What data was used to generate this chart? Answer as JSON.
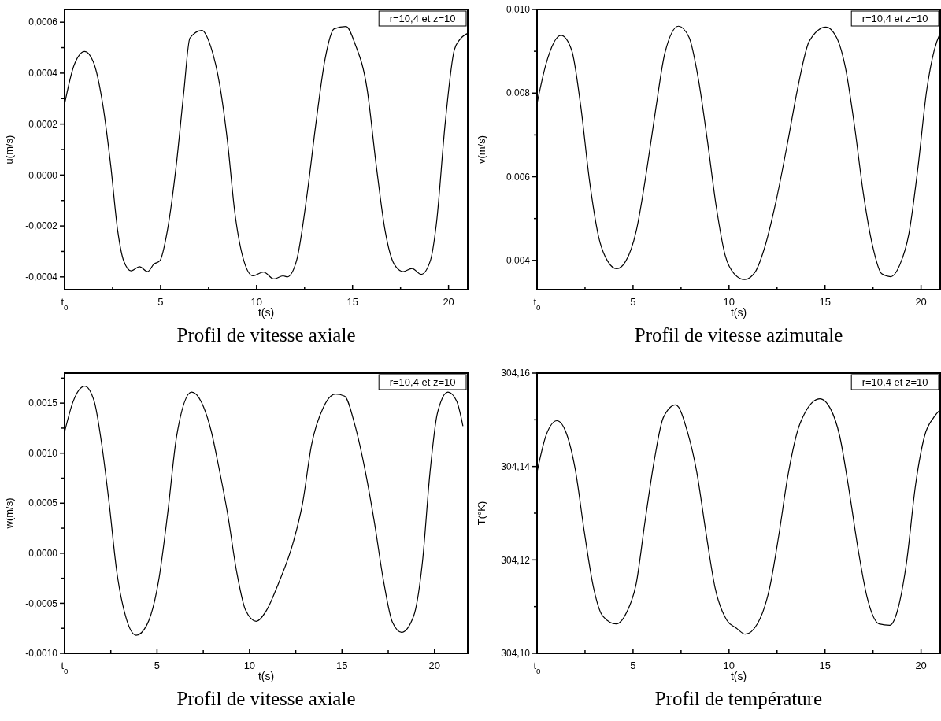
{
  "chart_data": [
    {
      "type": "line",
      "title": "Profil de vitesse axiale",
      "xlabel": "t(s)",
      "ylabel": "u(m/s)",
      "annotations": [
        "r=10,4 et z=10"
      ],
      "xlim": [
        0,
        21
      ],
      "xticks": [
        {
          "value": 0,
          "label": "t$_{0}$"
        },
        {
          "value": 2.5,
          "label": null
        },
        5,
        {
          "value": 7.5,
          "label": null
        },
        10,
        {
          "value": 12.5,
          "label": null
        },
        15,
        {
          "value": 17.5,
          "label": null
        },
        20
      ],
      "ylim": [
        -0.00045,
        0.00065
      ],
      "yticks": [
        {
          "value": -0.0004,
          "label": "-0,0004"
        },
        {
          "value": -0.0003,
          "label": null
        },
        {
          "value": -0.0002,
          "label": "-0,0002"
        },
        {
          "value": -0.0001,
          "label": null
        },
        {
          "value": 0,
          "label": "0,0000"
        },
        {
          "value": 0.0001,
          "label": null
        },
        {
          "value": 0.0002,
          "label": "0,0002"
        },
        {
          "value": 0.0003,
          "label": null
        },
        {
          "value": 0.0004,
          "label": "0,0004"
        },
        {
          "value": 0.0005,
          "label": null
        },
        {
          "value": 0.0006,
          "label": "0,0006"
        }
      ],
      "series": [
        {
          "color": "#000000",
          "x": [
            0,
            0.5,
            1.05,
            1.5,
            2.0,
            2.4,
            2.77,
            3.08,
            3.47,
            3.9,
            4.33,
            4.65,
            4.96,
            5.35,
            5.82,
            6.21,
            6.53,
            7.15,
            7.62,
            8.09,
            8.48,
            8.87,
            9.34,
            9.81,
            10.36,
            10.9,
            11.38,
            11.6,
            12.08,
            12.63,
            13.1,
            13.57,
            14.04,
            14.66,
            15.13,
            15.76,
            16.23,
            16.7,
            17.17,
            17.64,
            18.1,
            18.58,
            19.05,
            19.36,
            19.83,
            20.3,
            20.6,
            21
          ],
          "values": [
            0.000278,
            0.000432,
            0.000485,
            0.000444,
            0.000272,
            4e-05,
            -0.00022,
            -0.000337,
            -0.000376,
            -0.00036,
            -0.000379,
            -0.00035,
            -0.000337,
            -0.00022,
            4e-05,
            0.000325,
            0.000538,
            0.000568,
            0.000503,
            0.00035,
            0.000136,
            -0.000148,
            -0.000337,
            -0.000396,
            -0.000381,
            -0.000408,
            -0.000396,
            -0.0004,
            -0.000337,
            -7.7e-05,
            0.000207,
            0.000456,
            0.000574,
            0.000583,
            0.000515,
            0.000337,
            4e-05,
            -0.00022,
            -0.00035,
            -0.000379,
            -0.000367,
            -0.00039,
            -0.000337,
            -0.000196,
            0.000207,
            0.000491,
            0.000533,
            0.000556
          ]
        }
      ]
    },
    {
      "type": "line",
      "title": "Profil de vitesse azimutale",
      "xlabel": "t(s)",
      "ylabel": "v(m/s)",
      "annotations": [
        "r=10,4 et z=10"
      ],
      "xlim": [
        0,
        21
      ],
      "xticks": [
        {
          "value": 0,
          "label": "t$_{0}$"
        },
        {
          "value": 2.5,
          "label": null
        },
        5,
        {
          "value": 7.5,
          "label": null
        },
        10,
        {
          "value": 12.5,
          "label": null
        },
        15,
        {
          "value": 17.5,
          "label": null
        },
        20
      ],
      "ylim": [
        0.0033,
        0.01
      ],
      "yticks": [
        {
          "value": 0.004,
          "label": "0,004"
        },
        {
          "value": 0.005,
          "label": null
        },
        {
          "value": 0.006,
          "label": "0,006"
        },
        {
          "value": 0.007,
          "label": null
        },
        {
          "value": 0.008,
          "label": "0,008"
        },
        {
          "value": 0.009,
          "label": null
        },
        {
          "value": 0.01,
          "label": "0,010"
        }
      ],
      "series": [
        {
          "color": "#000000",
          "x": [
            0,
            0.47,
            1.25,
            1.8,
            2.27,
            2.74,
            3.21,
            3.68,
            4.15,
            4.62,
            5.17,
            5.72,
            6.19,
            6.66,
            7.37,
            7.92,
            8.39,
            8.86,
            9.33,
            9.8,
            10.27,
            10.82,
            11.36,
            11.83,
            12.46,
            13.09,
            13.56,
            14.19,
            15.05,
            15.6,
            16.07,
            16.54,
            17.0,
            17.48,
            17.95,
            18.42,
            18.9,
            19.37,
            19.83,
            20.3,
            20.69,
            21
          ],
          "values": [
            0.00775,
            0.0087,
            0.00938,
            0.00903,
            0.00771,
            0.00588,
            0.00456,
            0.00398,
            0.0038,
            0.00398,
            0.00471,
            0.00618,
            0.00764,
            0.00896,
            0.0096,
            0.00933,
            0.00837,
            0.00691,
            0.0053,
            0.00412,
            0.00368,
            0.00354,
            0.00372,
            0.00427,
            0.00544,
            0.00691,
            0.00808,
            0.00925,
            0.00958,
            0.00933,
            0.00859,
            0.0072,
            0.00559,
            0.00434,
            0.00368,
            0.00361,
            0.0039,
            0.00464,
            0.00618,
            0.00808,
            0.00903,
            0.00944
          ]
        }
      ]
    },
    {
      "type": "line",
      "title": "Profil de vitesse axiale",
      "xlabel": "t(s)",
      "ylabel": "w(m/s)",
      "annotations": [
        "r=10,4 et z=10"
      ],
      "xlim": [
        0,
        21.8
      ],
      "xticks": [
        {
          "value": 0,
          "label": "t$_{0}$"
        },
        {
          "value": 2.5,
          "label": null
        },
        5,
        {
          "value": 7.5,
          "label": null
        },
        10,
        {
          "value": 12.5,
          "label": null
        },
        15,
        {
          "value": 17.5,
          "label": null
        },
        20
      ],
      "ylim": [
        -0.001,
        0.0018
      ],
      "yticks": [
        {
          "value": -0.001,
          "label": "-0,0010"
        },
        {
          "value": -0.00075,
          "label": null
        },
        {
          "value": -0.0005,
          "label": "-0,0005"
        },
        {
          "value": -0.00025,
          "label": null
        },
        {
          "value": 0,
          "label": "0,0000"
        },
        {
          "value": 0.00025,
          "label": null
        },
        {
          "value": 0.0005,
          "label": "0,0005"
        },
        {
          "value": 0.00075,
          "label": null
        },
        {
          "value": 0.001,
          "label": "0,0010"
        },
        {
          "value": 0.00125,
          "label": null
        },
        {
          "value": 0.0015,
          "label": "0,0015"
        },
        {
          "value": 0.00175,
          "label": null
        }
      ],
      "series": [
        {
          "color": "#000000",
          "x": [
            0,
            0.47,
            1.09,
            1.6,
            2.0,
            2.41,
            2.82,
            3.3,
            3.87,
            4.44,
            5.09,
            5.57,
            6.06,
            6.87,
            7.52,
            7.93,
            8.33,
            8.82,
            9.3,
            9.79,
            10.36,
            10.92,
            11.57,
            12.38,
            12.87,
            13.35,
            14.0,
            14.65,
            15.14,
            15.7,
            16.27,
            16.76,
            17.24,
            17.73,
            18.22,
            18.87,
            19.35,
            19.76,
            20.16,
            20.73,
            21.2,
            21.54
          ],
          "values": [
            0.00121,
            0.00152,
            0.00167,
            0.00152,
            0.0011,
            0.0005,
            -0.00018,
            -0.00063,
            -0.00082,
            -0.00072,
            -0.00027,
            0.00039,
            0.00117,
            0.00161,
            0.00146,
            0.00122,
            0.00087,
            0.00039,
            -0.00018,
            -0.00057,
            -0.00068,
            -0.00057,
            -0.0003,
            0.00012,
            0.0005,
            0.00108,
            0.00146,
            0.00159,
            0.00157,
            0.00128,
            0.00081,
            0.0003,
            -0.00027,
            -0.00069,
            -0.00079,
            -0.00063,
            -9e-05,
            0.00081,
            0.0014,
            0.00161,
            0.00152,
            0.00127
          ]
        }
      ]
    },
    {
      "type": "line",
      "title": "Profil de température",
      "xlabel": "t(s)",
      "ylabel": "T(°K)",
      "annotations": [
        "r=10,4 et z=10"
      ],
      "xlim": [
        0,
        21
      ],
      "xticks": [
        {
          "value": 0,
          "label": "t$_{0}$"
        },
        {
          "value": 2.5,
          "label": null
        },
        5,
        {
          "value": 7.5,
          "label": null
        },
        10,
        {
          "value": 12.5,
          "label": null
        },
        15,
        {
          "value": 17.5,
          "label": null
        },
        20
      ],
      "ylim": [
        304.1,
        304.16
      ],
      "yticks": [
        {
          "value": 304.1,
          "label": "304,10"
        },
        {
          "value": 304.11,
          "label": null
        },
        {
          "value": 304.12,
          "label": "304,12"
        },
        {
          "value": 304.13,
          "label": null
        },
        {
          "value": 304.14,
          "label": "304,14"
        },
        {
          "value": 304.15,
          "label": null
        },
        {
          "value": 304.16,
          "label": "304,16"
        }
      ],
      "series": [
        {
          "color": "#000000",
          "x": [
            0,
            0.49,
            1.04,
            1.52,
            1.99,
            2.47,
            2.94,
            3.42,
            4.13,
            4.68,
            5.16,
            5.63,
            6.11,
            6.58,
            7.22,
            7.85,
            8.32,
            8.8,
            9.27,
            9.9,
            10.38,
            10.85,
            11.49,
            12.12,
            12.59,
            13.07,
            13.7,
            14.73,
            15.28,
            15.76,
            16.23,
            16.71,
            17.18,
            17.82,
            18.37,
            18.84,
            19.24,
            19.72,
            20.19,
            20.66,
            20.98
          ],
          "values": [
            304.1388,
            304.1469,
            304.1498,
            304.1472,
            304.1394,
            304.1258,
            304.1141,
            304.108,
            304.1063,
            304.1089,
            304.1148,
            304.1284,
            304.1414,
            304.1505,
            304.1532,
            304.1472,
            304.1388,
            304.1258,
            304.1141,
            304.107,
            304.1054,
            304.1041,
            304.1064,
            304.1141,
            304.1252,
            304.1381,
            304.1492,
            304.1545,
            304.1524,
            304.1466,
            304.1355,
            304.1226,
            304.1122,
            304.1063,
            304.106,
            304.1102,
            304.1193,
            304.1362,
            304.1466,
            304.1505,
            304.1521
          ]
        }
      ]
    }
  ]
}
